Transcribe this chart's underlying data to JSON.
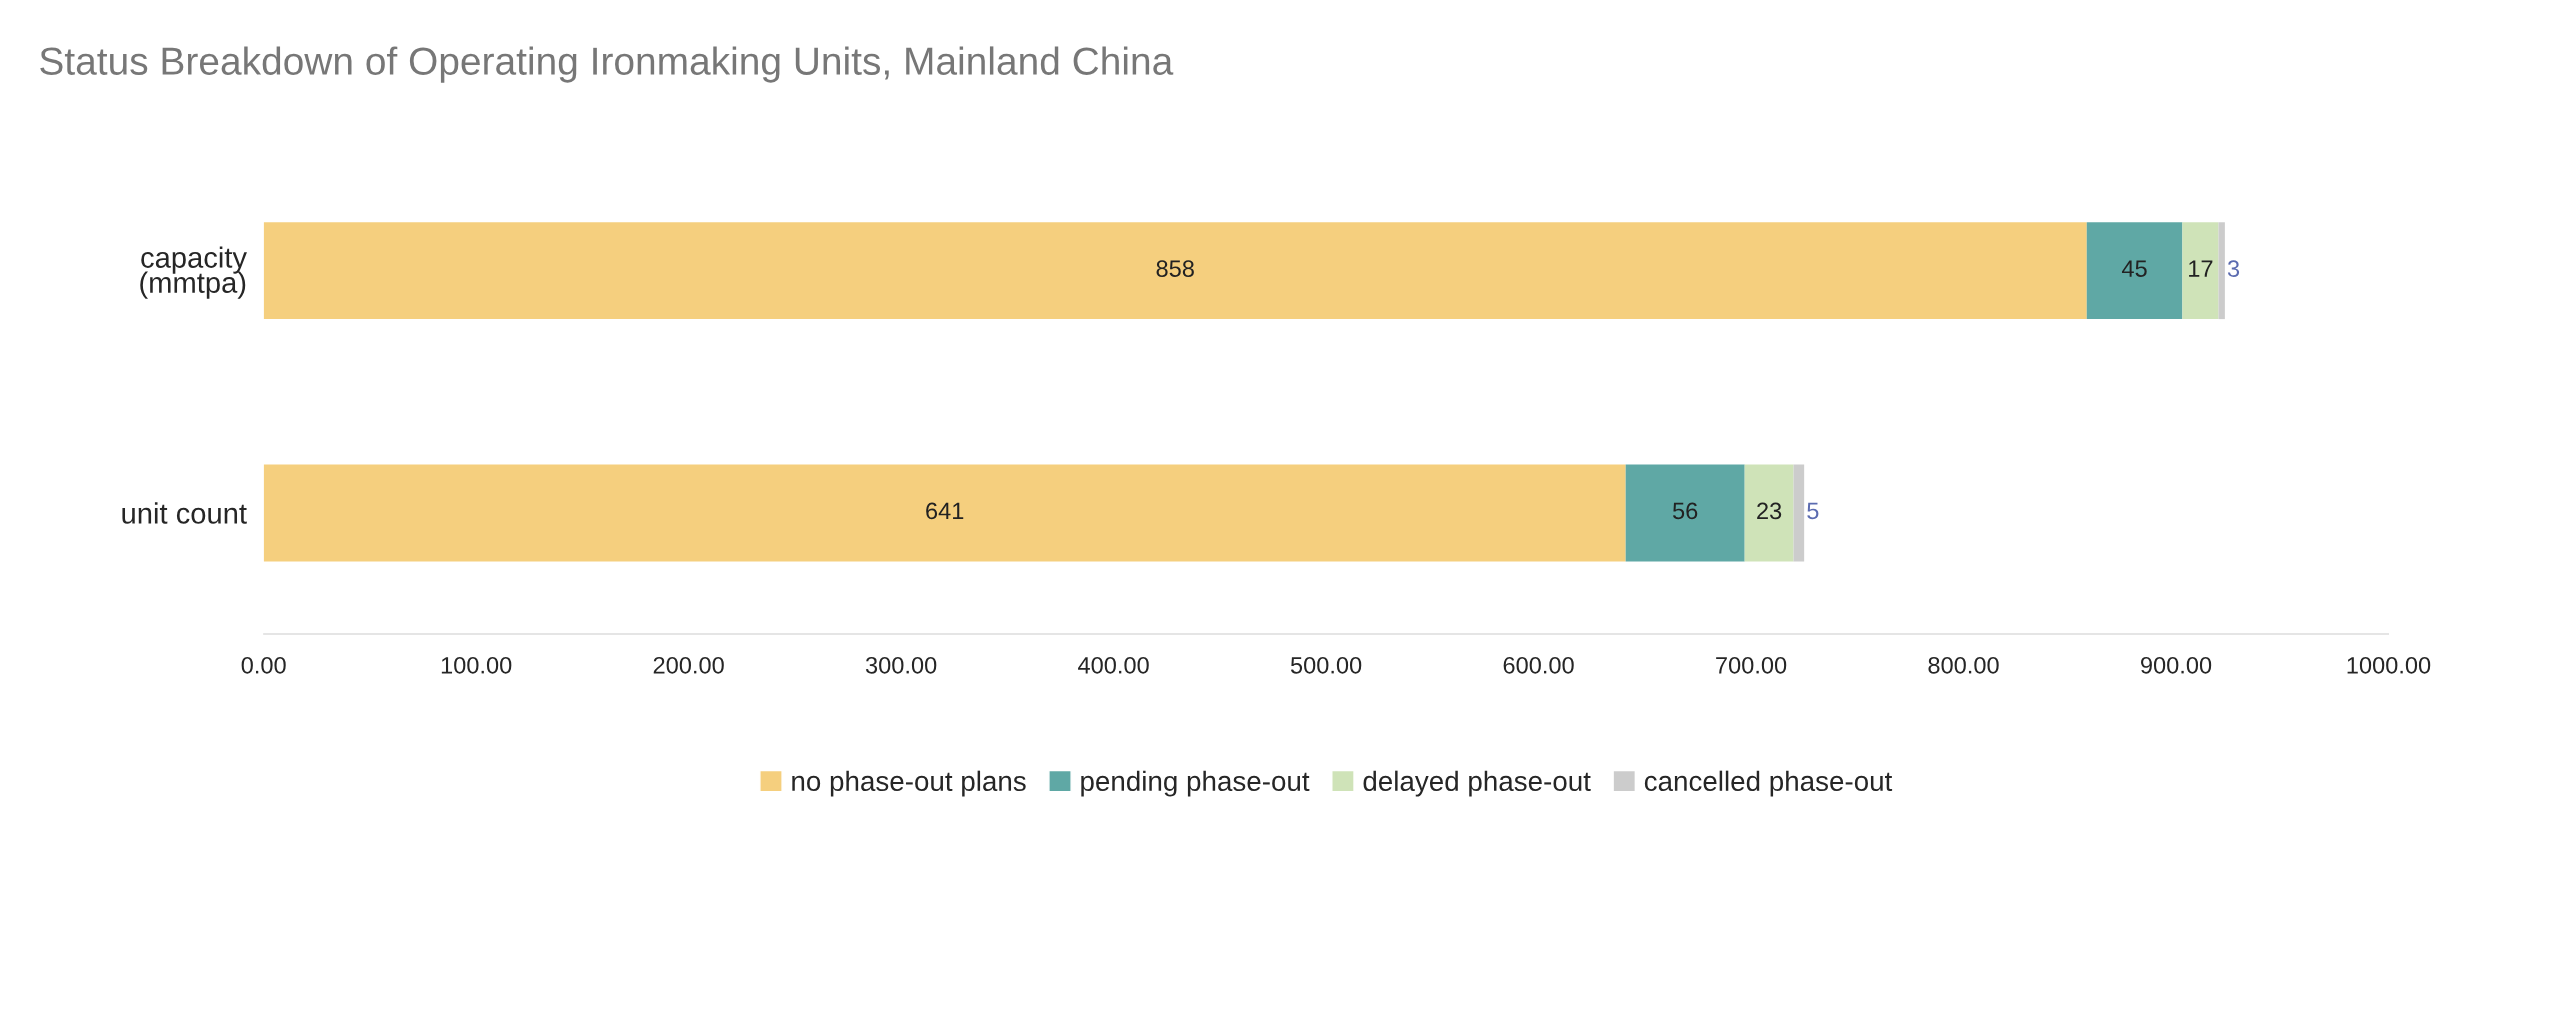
{
  "chart_data": {
    "type": "bar",
    "orientation": "horizontal",
    "stacked": true,
    "title": "Status Breakdown of Operating Ironmaking Units, Mainland China",
    "categories": [
      "capacity\n(mmtpa)",
      "unit count"
    ],
    "series": [
      {
        "name": "no phase-out plans",
        "color": "#f5cf7e",
        "values": [
          858,
          641
        ]
      },
      {
        "name": "pending phase-out",
        "color": "#5fa8a5",
        "values": [
          45,
          56
        ]
      },
      {
        "name": "delayed phase-out",
        "color": "#cfe3b8",
        "values": [
          17,
          23
        ]
      },
      {
        "name": "cancelled phase-out",
        "color": "#cccccc",
        "values": [
          3,
          5
        ]
      }
    ],
    "xlim": [
      0,
      1000
    ],
    "xticks": [
      {
        "value": 0,
        "label": "0.00"
      },
      {
        "value": 100,
        "label": "100.00"
      },
      {
        "value": 200,
        "label": "200.00"
      },
      {
        "value": 300,
        "label": "300.00"
      },
      {
        "value": 400,
        "label": "400.00"
      },
      {
        "value": 500,
        "label": "500.00"
      },
      {
        "value": 600,
        "label": "600.00"
      },
      {
        "value": 700,
        "label": "700.00"
      },
      {
        "value": 800,
        "label": "800.00"
      },
      {
        "value": 900,
        "label": "900.00"
      },
      {
        "value": 1000,
        "label": "1000.00"
      }
    ],
    "data_labels": true,
    "grid": false,
    "legend": "bottom"
  }
}
